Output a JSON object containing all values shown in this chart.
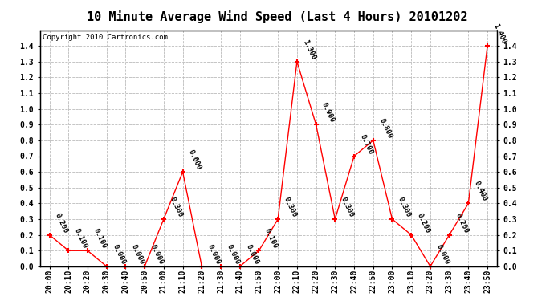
{
  "title": "10 Minute Average Wind Speed (Last 4 Hours) 20101202",
  "copyright": "Copyright 2010 Cartronics.com",
  "x_labels": [
    "20:00",
    "20:10",
    "20:20",
    "20:30",
    "20:40",
    "20:50",
    "21:00",
    "21:10",
    "21:20",
    "21:30",
    "21:40",
    "21:50",
    "22:00",
    "22:10",
    "22:20",
    "22:30",
    "22:40",
    "22:50",
    "23:00",
    "23:10",
    "23:20",
    "23:30",
    "23:40",
    "23:50"
  ],
  "y_values": [
    0.2,
    0.1,
    0.1,
    0.0,
    0.0,
    0.0,
    0.3,
    0.6,
    0.0,
    0.0,
    0.0,
    0.1,
    0.3,
    1.3,
    0.9,
    0.3,
    0.7,
    0.8,
    0.3,
    0.2,
    0.0,
    0.2,
    0.4,
    1.4
  ],
  "line_color": "#ff0000",
  "marker_color": "#ff0000",
  "background_color": "#ffffff",
  "grid_color": "#bbbbbb",
  "ylim": [
    0.0,
    1.5
  ],
  "yticks_left": [
    0.0,
    0.1,
    0.2,
    0.3,
    0.4,
    0.5,
    0.6,
    0.7,
    0.8,
    0.9,
    1.0,
    1.1,
    1.2,
    1.3,
    1.4
  ],
  "yticks_right": [
    0.0,
    0.1,
    0.2,
    0.3,
    0.4,
    0.5,
    0.6,
    0.7,
    0.8,
    0.9,
    1.0,
    1.1,
    1.2,
    1.3,
    1.4
  ],
  "title_fontsize": 11,
  "copyright_fontsize": 6.5,
  "label_fontsize": 7,
  "annotation_fontsize": 6.5,
  "annotation_rotation": -65
}
